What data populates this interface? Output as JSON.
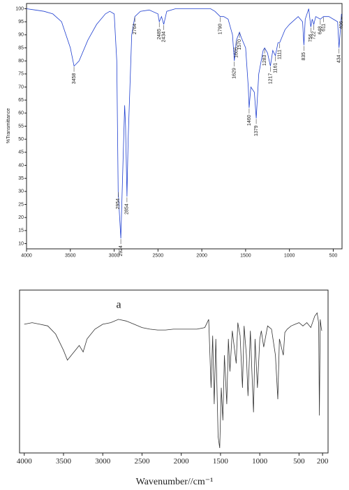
{
  "chart_data": [
    {
      "type": "line",
      "y_label": "%Transmittance",
      "x": [
        4000,
        3900,
        3800,
        3700,
        3600,
        3500,
        3458,
        3400,
        3300,
        3200,
        3100,
        3050,
        3000,
        2970,
        2954,
        2924,
        2900,
        2880,
        2870,
        2854,
        2840,
        2800,
        2764,
        2700,
        2600,
        2500,
        2485,
        2460,
        2434,
        2400,
        2300,
        2200,
        2100,
        2000,
        1900,
        1850,
        1790,
        1750,
        1700,
        1650,
        1629,
        1605,
        1570,
        1550,
        1500,
        1470,
        1460,
        1440,
        1400,
        1379,
        1350,
        1300,
        1283,
        1250,
        1217,
        1190,
        1161,
        1130,
        1111,
        1050,
        1000,
        900,
        850,
        835,
        820,
        780,
        756,
        740,
        722,
        700,
        648,
        611,
        550,
        500,
        450,
        434,
        410,
        406,
        400
      ],
      "series": [
        {
          "color": "#1f3fd0",
          "values": [
            100,
            99.5,
            99,
            98,
            95,
            85,
            78,
            80,
            88,
            94,
            98,
            99,
            98,
            80,
            30,
            12,
            40,
            63,
            55,
            28,
            50,
            90,
            97,
            99,
            99.5,
            98,
            95,
            97,
            94,
            99,
            100,
            100,
            100,
            100,
            100,
            99,
            97,
            97,
            96,
            90,
            80,
            88,
            91,
            89,
            85,
            70,
            62,
            70,
            68,
            58,
            75,
            84,
            85,
            83,
            78,
            84,
            82,
            87,
            87,
            92,
            94,
            97,
            95,
            86,
            96,
            100,
            93,
            96,
            94,
            97,
            96,
            97,
            97,
            96,
            95,
            85,
            96,
            98,
            97
          ]
        }
      ],
      "peaks": {
        "x": [
          3458,
          2954,
          2924,
          2854,
          2764,
          2485,
          2434,
          1790,
          1629,
          1605,
          1570,
          1460,
          1379,
          1283,
          1217,
          1161,
          1111,
          835,
          756,
          722,
          648,
          611,
          434,
          406
        ],
        "y": [
          78,
          30,
          12,
          28,
          97,
          95,
          94,
          97,
          80,
          88,
          91,
          62,
          58,
          85,
          78,
          82,
          87,
          86,
          93,
          94,
          96,
          97,
          85,
          98
        ]
      },
      "xlim": [
        4000,
        400
      ],
      "ylim": [
        8,
        102
      ],
      "xticks": [
        4000,
        3500,
        3000,
        2500,
        2000,
        1500,
        1000,
        500
      ],
      "yticks": [
        10,
        15,
        20,
        25,
        30,
        35,
        40,
        45,
        50,
        55,
        60,
        65,
        70,
        75,
        80,
        85,
        90,
        95,
        100
      ]
    },
    {
      "type": "line",
      "annotation": "a",
      "x_label": "Wavenumber//cm⁻¹",
      "x": [
        4000,
        3900,
        3800,
        3700,
        3600,
        3500,
        3450,
        3400,
        3300,
        3250,
        3200,
        3100,
        3000,
        2900,
        2800,
        2700,
        2600,
        2500,
        2400,
        2300,
        2200,
        2100,
        2000,
        1900,
        1800,
        1700,
        1650,
        1620,
        1600,
        1580,
        1560,
        1530,
        1510,
        1490,
        1470,
        1450,
        1420,
        1400,
        1380,
        1350,
        1300,
        1280,
        1250,
        1220,
        1200,
        1170,
        1150,
        1120,
        1100,
        1080,
        1060,
        1030,
        1000,
        980,
        950,
        900,
        850,
        800,
        770,
        750,
        700,
        680,
        650,
        600,
        550,
        500,
        450,
        400,
        350,
        300,
        270,
        250,
        240,
        230,
        220,
        210
      ],
      "series": [
        {
          "color": "#333333",
          "values": [
            79,
            80,
            79,
            78,
            73,
            63,
            57,
            60,
            66,
            62,
            70,
            76,
            79,
            80,
            82,
            81,
            79,
            77,
            76,
            75.5,
            75.5,
            76,
            76,
            76,
            76,
            77,
            82,
            40,
            72,
            30,
            70,
            10,
            3,
            40,
            20,
            60,
            30,
            70,
            50,
            75,
            55,
            80,
            72,
            40,
            78,
            60,
            35,
            75,
            50,
            25,
            70,
            40,
            70,
            75,
            65,
            78,
            76,
            60,
            33,
            70,
            60,
            74,
            76,
            78,
            79,
            80,
            78,
            80,
            77,
            84,
            86,
            80,
            23,
            82,
            78,
            75
          ]
        }
      ],
      "xlim": [
        4060,
        130
      ],
      "ylim": [
        0,
        100
      ],
      "xticks": [
        4000,
        3500,
        3000,
        2500,
        2000,
        1500,
        1000,
        500,
        200
      ]
    }
  ]
}
